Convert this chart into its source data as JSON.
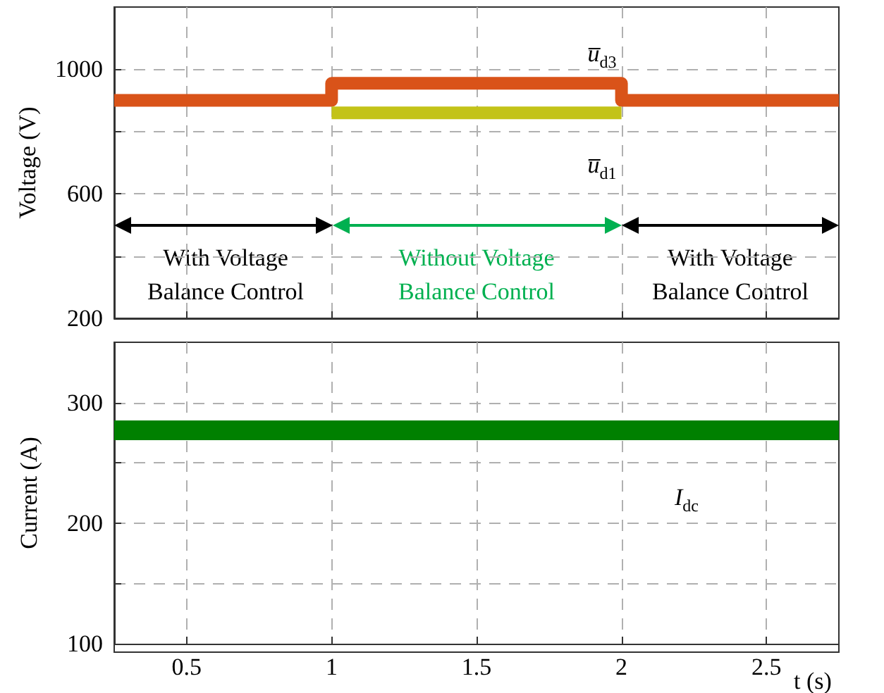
{
  "chart_data": [
    {
      "type": "line",
      "ylabel": "Voltage (V)",
      "xlim": [
        0.25,
        2.75
      ],
      "xticks": [
        0.5,
        1,
        1.5,
        2,
        2.5
      ],
      "ylim": [
        200,
        1200
      ],
      "yticks": [
        200,
        {
          "value": 400,
          "label": null
        },
        600,
        {
          "value": 800,
          "label": null
        },
        1000
      ],
      "tick_labels": "y",
      "grid": true,
      "marker": "none",
      "line_style": "solid",
      "series": [
        {
          "color": "#d95319",
          "x": [
            0.25,
            1,
            1,
            2,
            2,
            2.75
          ],
          "values": [
            900,
            900,
            955,
            955,
            900,
            900
          ]
        },
        {
          "color": "#c3c318",
          "x": [
            1,
            2
          ],
          "values": [
            860,
            860
          ]
        }
      ],
      "annotations": [
        "u̅$_{d3}$",
        "u̅$_{d1}$",
        "With Voltage\nBalance Control",
        "Without Voltage\nBalance Control",
        "With Voltage\nBalance Control"
      ]
    },
    {
      "type": "line",
      "xlabel": "t (s)",
      "ylabel": "Current (A)",
      "xlim": [
        0.25,
        2.75
      ],
      "xticks": [
        0.5,
        1,
        1.5,
        2,
        2.5
      ],
      "ylim": [
        100,
        350
      ],
      "yticks": [
        100,
        {
          "value": 150,
          "label": null
        },
        200,
        {
          "value": 250,
          "label": null
        },
        300
      ],
      "grid": true,
      "marker": "none",
      "line_style": "solid",
      "series": [
        {
          "color": "#008000",
          "x": [
            0.25,
            2.75
          ],
          "values": [
            277,
            277
          ]
        }
      ],
      "annotations": [
        "I$_{dc}$"
      ]
    }
  ]
}
